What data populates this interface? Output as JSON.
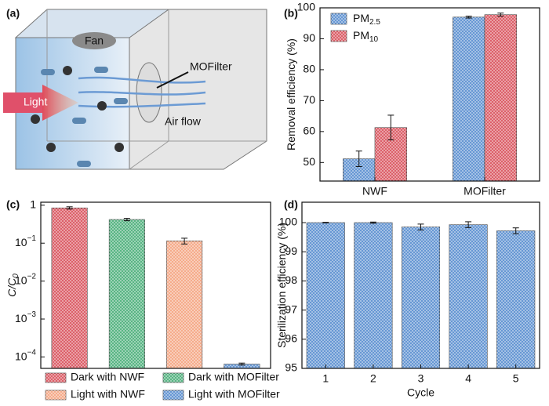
{
  "diagram": {
    "panel": "(a)",
    "fan": "Fan",
    "filter": "MOFilter",
    "light": "Light",
    "airflow": "Air flow"
  },
  "chart_data": [
    {
      "type": "bar",
      "panel": "(b)",
      "ylabel": "Removal efficiency (%)",
      "categories": [
        "NWF",
        "MOFilter"
      ],
      "series": [
        {
          "name": "PM",
          "name_sub": "2.5",
          "color": "#5b8fd0",
          "values": [
            51.2,
            97
          ],
          "errors": [
            2.5,
            0.3
          ]
        },
        {
          "name": "PM",
          "name_sub": "10",
          "color": "#d9545e",
          "values": [
            61.3,
            97.8
          ],
          "errors": [
            4,
            0.5
          ]
        }
      ],
      "ylim": [
        44,
        100
      ],
      "yticks": [
        50,
        60,
        70,
        80,
        90,
        100
      ],
      "legend": "upper left"
    },
    {
      "type": "bar",
      "panel": "(c)",
      "ylabel": "C/C",
      "ylabel_sub": "0",
      "log": true,
      "categories": [
        "Dark with NWF",
        "Dark with MOFilter",
        "Light with NWF",
        "Light with MOFilter"
      ],
      "colors": [
        "#d9545e",
        "#4caf7a",
        "#f4a582",
        "#5b8fd0"
      ],
      "values": [
        0.85,
        0.42,
        0.115,
        6.5e-05
      ],
      "errors": [
        0.06,
        0.03,
        0.02,
        4e-06
      ],
      "ylim": [
        5e-05,
        1.2
      ],
      "yticks": [
        1,
        {
          "value": 0.1,
          "label": "10",
          "exponent": "−1"
        },
        {
          "value": 0.01,
          "label": "10",
          "exponent": "−2"
        },
        {
          "value": 0.001,
          "label": "10",
          "exponent": "−3"
        },
        {
          "value": 0.0001,
          "label": "10",
          "exponent": "−4"
        }
      ],
      "legend": "below"
    },
    {
      "type": "bar",
      "panel": "(d)",
      "xlabel": "Cycle",
      "ylabel": "Sterilization efficiency (%)",
      "categories": [
        "1",
        "2",
        "3",
        "4",
        "5"
      ],
      "color": "#5b8fd0",
      "values": [
        100,
        100,
        99.85,
        99.93,
        99.72
      ],
      "errors": [
        0.01,
        0.02,
        0.1,
        0.1,
        0.1
      ],
      "ylim": [
        95,
        100.7
      ],
      "yticks": [
        95,
        96,
        97,
        98,
        99,
        100
      ]
    }
  ]
}
